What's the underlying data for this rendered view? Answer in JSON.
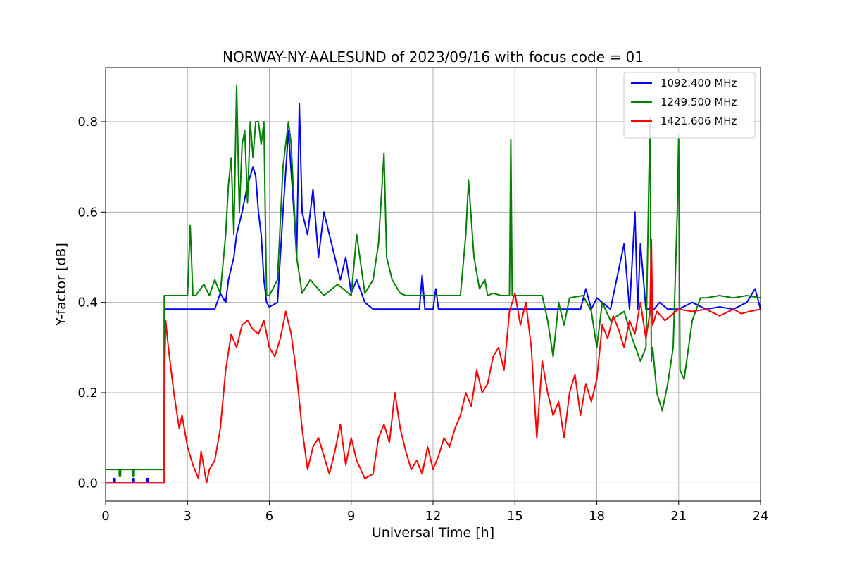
{
  "chart_data": {
    "type": "line",
    "title": "NORWAY-NY-AALESUND of 2023/09/16 with focus code = 01",
    "xlabel": "Universal Time [h]",
    "ylabel": "Y-factor [dB]",
    "xlim": [
      0,
      24
    ],
    "ylim": [
      -0.04,
      0.92
    ],
    "xticks": [
      0,
      3,
      6,
      9,
      12,
      15,
      18,
      21,
      24
    ],
    "xtick_labels": [
      "0",
      "3",
      "6",
      "9",
      "12",
      "15",
      "18",
      "21",
      "24"
    ],
    "yticks": [
      0.0,
      0.2,
      0.4,
      0.6,
      0.8
    ],
    "ytick_labels": [
      "0.0",
      "0.2",
      "0.4",
      "0.6",
      "0.8"
    ],
    "grid": true,
    "legend_position": "top-right",
    "series": [
      {
        "name": "1092.400 MHz",
        "color": "#0000ff",
        "x": [
          0,
          0.3,
          0.3,
          0.35,
          0.35,
          1.0,
          1.0,
          1.05,
          1.05,
          1.5,
          1.5,
          1.55,
          1.55,
          2.15,
          2.15,
          4.0,
          4.2,
          4.4,
          4.5,
          4.7,
          4.8,
          5.0,
          5.2,
          5.4,
          5.5,
          5.6,
          5.7,
          5.8,
          5.9,
          6.0,
          6.3,
          6.5,
          6.7,
          6.9,
          7.0,
          7.1,
          7.2,
          7.4,
          7.6,
          7.8,
          8.0,
          8.2,
          8.4,
          8.6,
          8.8,
          9.0,
          9.2,
          9.5,
          9.8,
          10.0,
          11.5,
          11.6,
          11.7,
          12.0,
          12.1,
          12.2,
          13.0,
          17.4,
          17.6,
          17.8,
          18.0,
          18.5,
          19.0,
          19.2,
          19.4,
          19.5,
          19.6,
          19.8,
          20.0,
          20.1,
          20.3,
          20.6,
          21.0,
          21.5,
          22.0,
          22.5,
          23.0,
          23.5,
          23.8,
          24.0
        ],
        "y": [
          0.0,
          0.0,
          0.01,
          0.01,
          0.0,
          0.0,
          0.01,
          0.01,
          0.0,
          0.0,
          0.01,
          0.01,
          0.0,
          0.0,
          0.385,
          0.385,
          0.42,
          0.4,
          0.45,
          0.5,
          0.55,
          0.6,
          0.66,
          0.7,
          0.68,
          0.6,
          0.55,
          0.45,
          0.4,
          0.39,
          0.4,
          0.6,
          0.78,
          0.6,
          0.5,
          0.84,
          0.6,
          0.55,
          0.65,
          0.5,
          0.6,
          0.55,
          0.5,
          0.45,
          0.5,
          0.42,
          0.45,
          0.4,
          0.385,
          0.385,
          0.385,
          0.46,
          0.385,
          0.385,
          0.43,
          0.385,
          0.385,
          0.385,
          0.43,
          0.385,
          0.41,
          0.385,
          0.53,
          0.385,
          0.6,
          0.385,
          0.53,
          0.385,
          0.385,
          0.385,
          0.4,
          0.385,
          0.385,
          0.4,
          0.385,
          0.39,
          0.385,
          0.4,
          0.43,
          0.385
        ]
      },
      {
        "name": "1249.500 MHz",
        "color": "#008000",
        "x": [
          0,
          0.5,
          0.5,
          0.55,
          0.55,
          1.0,
          1.0,
          1.05,
          1.05,
          2.15,
          2.15,
          3.0,
          3.1,
          3.2,
          3.3,
          3.6,
          3.8,
          4.0,
          4.2,
          4.4,
          4.5,
          4.6,
          4.7,
          4.8,
          4.9,
          5.0,
          5.1,
          5.2,
          5.3,
          5.4,
          5.5,
          5.6,
          5.7,
          5.8,
          5.85,
          5.9,
          6.0,
          6.3,
          6.5,
          6.7,
          6.8,
          7.0,
          7.2,
          7.5,
          8.0,
          8.5,
          9.0,
          9.2,
          9.5,
          9.8,
          10.0,
          10.2,
          10.3,
          10.5,
          10.8,
          11.0,
          11.5,
          12.0,
          12.5,
          13.0,
          13.2,
          13.3,
          13.5,
          13.7,
          13.9,
          14.0,
          14.2,
          14.5,
          14.8,
          14.85,
          14.9,
          15.5,
          16.0,
          16.2,
          16.4,
          16.6,
          16.8,
          17.0,
          17.5,
          17.8,
          18.0,
          18.2,
          18.5,
          19.0,
          19.3,
          19.6,
          19.8,
          19.95,
          20.0,
          20.05,
          20.2,
          20.4,
          20.6,
          20.8,
          20.95,
          21.0,
          21.05,
          21.2,
          21.5,
          21.8,
          22.0,
          22.5,
          23.0,
          23.5,
          24.0
        ],
        "y": [
          0.03,
          0.03,
          0.015,
          0.015,
          0.03,
          0.03,
          0.015,
          0.015,
          0.03,
          0.03,
          0.415,
          0.415,
          0.57,
          0.415,
          0.415,
          0.44,
          0.415,
          0.45,
          0.42,
          0.55,
          0.66,
          0.72,
          0.55,
          0.88,
          0.6,
          0.75,
          0.78,
          0.62,
          0.8,
          0.72,
          0.8,
          0.8,
          0.75,
          0.8,
          0.6,
          0.415,
          0.415,
          0.45,
          0.7,
          0.8,
          0.75,
          0.5,
          0.42,
          0.45,
          0.415,
          0.44,
          0.415,
          0.55,
          0.42,
          0.45,
          0.53,
          0.73,
          0.5,
          0.45,
          0.42,
          0.415,
          0.415,
          0.415,
          0.415,
          0.415,
          0.55,
          0.67,
          0.5,
          0.43,
          0.45,
          0.415,
          0.42,
          0.415,
          0.415,
          0.76,
          0.415,
          0.415,
          0.415,
          0.36,
          0.28,
          0.4,
          0.35,
          0.41,
          0.415,
          0.38,
          0.3,
          0.4,
          0.36,
          0.38,
          0.32,
          0.27,
          0.3,
          0.81,
          0.27,
          0.3,
          0.2,
          0.16,
          0.22,
          0.3,
          0.6,
          0.77,
          0.25,
          0.23,
          0.36,
          0.41,
          0.41,
          0.415,
          0.41,
          0.415,
          0.41
        ]
      },
      {
        "name": "1421.606 MHz",
        "color": "#ff0000",
        "x": [
          0,
          2.15,
          2.15,
          2.2,
          2.3,
          2.5,
          2.7,
          2.8,
          3.0,
          3.2,
          3.4,
          3.5,
          3.7,
          3.8,
          4.0,
          4.2,
          4.4,
          4.6,
          4.8,
          5.0,
          5.2,
          5.4,
          5.6,
          5.8,
          6.0,
          6.2,
          6.4,
          6.6,
          6.8,
          7.0,
          7.2,
          7.4,
          7.6,
          7.8,
          8.0,
          8.2,
          8.4,
          8.6,
          8.8,
          9.0,
          9.2,
          9.5,
          9.8,
          10.0,
          10.2,
          10.4,
          10.6,
          10.8,
          11.0,
          11.2,
          11.4,
          11.6,
          11.8,
          12.0,
          12.2,
          12.4,
          12.6,
          12.8,
          13.0,
          13.2,
          13.4,
          13.6,
          13.8,
          14.0,
          14.2,
          14.4,
          14.6,
          14.8,
          15.0,
          15.2,
          15.4,
          15.6,
          15.8,
          16.0,
          16.2,
          16.4,
          16.6,
          16.8,
          17.0,
          17.2,
          17.4,
          17.6,
          17.8,
          18.0,
          18.2,
          18.4,
          18.6,
          18.8,
          19.0,
          19.2,
          19.4,
          19.6,
          19.8,
          19.95,
          20.0,
          20.05,
          20.2,
          20.5,
          21.0,
          21.5,
          22.0,
          22.5,
          23.0,
          23.3,
          23.6,
          24.0
        ],
        "y": [
          0.0,
          0.0,
          0.2,
          0.36,
          0.3,
          0.2,
          0.12,
          0.15,
          0.08,
          0.04,
          0.01,
          0.07,
          0.0,
          0.03,
          0.05,
          0.12,
          0.25,
          0.33,
          0.3,
          0.35,
          0.36,
          0.34,
          0.33,
          0.36,
          0.3,
          0.28,
          0.32,
          0.38,
          0.33,
          0.24,
          0.12,
          0.03,
          0.08,
          0.1,
          0.06,
          0.02,
          0.07,
          0.13,
          0.04,
          0.1,
          0.05,
          0.01,
          0.02,
          0.1,
          0.13,
          0.09,
          0.2,
          0.12,
          0.07,
          0.03,
          0.05,
          0.02,
          0.08,
          0.03,
          0.06,
          0.1,
          0.08,
          0.12,
          0.15,
          0.2,
          0.17,
          0.25,
          0.2,
          0.22,
          0.28,
          0.3,
          0.25,
          0.38,
          0.42,
          0.35,
          0.4,
          0.3,
          0.1,
          0.27,
          0.2,
          0.15,
          0.18,
          0.1,
          0.2,
          0.24,
          0.15,
          0.22,
          0.18,
          0.23,
          0.35,
          0.32,
          0.37,
          0.34,
          0.3,
          0.36,
          0.33,
          0.4,
          0.32,
          0.38,
          0.54,
          0.35,
          0.38,
          0.36,
          0.385,
          0.38,
          0.385,
          0.37,
          0.385,
          0.375,
          0.38,
          0.385
        ]
      }
    ]
  }
}
